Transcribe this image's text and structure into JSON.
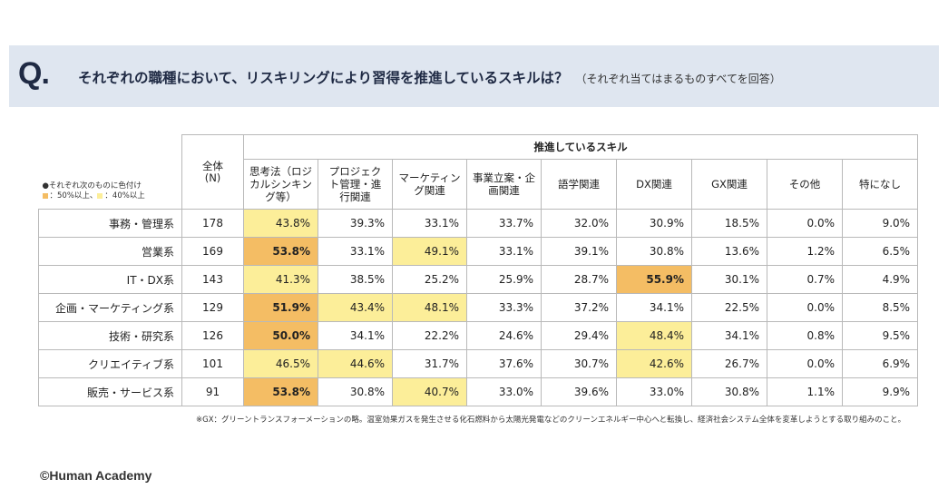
{
  "header": {
    "q_mark": "Q.",
    "question": "それぞれの職種において、リスキリングにより習得を推進しているスキルは？",
    "note": "（それぞれ当てはまるものすべてを回答）"
  },
  "legend": {
    "line1": "●それぞれ次のものに色付け",
    "label50": "：50%以上、",
    "label40": "：40%以上",
    "color_high": "#f4bd64",
    "color_mid": "#fcee99"
  },
  "table": {
    "n_header": "全体\n(N)",
    "group_header": "推進しているスキル",
    "columns": [
      "思考法（ロジカルシンキング等）",
      "プロジェクト管理・進行関連",
      "マーケティング関連",
      "事業立案・企画関連",
      "語学関連",
      "DX関連",
      "GX関連",
      "その他",
      "特になし"
    ],
    "rows": [
      {
        "label": "事務・管理系",
        "n": "178",
        "values": [
          "43.8%",
          "39.3%",
          "33.1%",
          "33.7%",
          "32.0%",
          "30.9%",
          "18.5%",
          "0.0%",
          "9.0%"
        ],
        "hl": [
          "mid",
          "",
          "",
          "",
          "",
          "",
          "",
          "",
          ""
        ]
      },
      {
        "label": "営業系",
        "n": "169",
        "values": [
          "53.8%",
          "33.1%",
          "49.1%",
          "33.1%",
          "39.1%",
          "30.8%",
          "13.6%",
          "1.2%",
          "6.5%"
        ],
        "hl": [
          "hi",
          "",
          "mid",
          "",
          "",
          "",
          "",
          "",
          ""
        ]
      },
      {
        "label": "IT・DX系",
        "n": "143",
        "values": [
          "41.3%",
          "38.5%",
          "25.2%",
          "25.9%",
          "28.7%",
          "55.9%",
          "30.1%",
          "0.7%",
          "4.9%"
        ],
        "hl": [
          "mid",
          "",
          "",
          "",
          "",
          "hi",
          "",
          "",
          ""
        ]
      },
      {
        "label": "企画・マーケティング系",
        "n": "129",
        "values": [
          "51.9%",
          "43.4%",
          "48.1%",
          "33.3%",
          "37.2%",
          "34.1%",
          "22.5%",
          "0.0%",
          "8.5%"
        ],
        "hl": [
          "hi",
          "mid",
          "mid",
          "",
          "",
          "",
          "",
          "",
          ""
        ]
      },
      {
        "label": "技術・研究系",
        "n": "126",
        "values": [
          "50.0%",
          "34.1%",
          "22.2%",
          "24.6%",
          "29.4%",
          "48.4%",
          "34.1%",
          "0.8%",
          "9.5%"
        ],
        "hl": [
          "hi",
          "",
          "",
          "",
          "",
          "mid",
          "",
          "",
          ""
        ]
      },
      {
        "label": "クリエイティブ系",
        "n": "101",
        "values": [
          "46.5%",
          "44.6%",
          "31.7%",
          "37.6%",
          "30.7%",
          "42.6%",
          "26.7%",
          "0.0%",
          "6.9%"
        ],
        "hl": [
          "mid",
          "mid",
          "",
          "",
          "",
          "mid",
          "",
          "",
          ""
        ]
      },
      {
        "label": "販売・サービス系",
        "n": "91",
        "values": [
          "53.8%",
          "30.8%",
          "40.7%",
          "33.0%",
          "39.6%",
          "33.0%",
          "30.8%",
          "1.1%",
          "9.9%"
        ],
        "hl": [
          "hi",
          "",
          "mid",
          "",
          "",
          "",
          "",
          "",
          ""
        ]
      }
    ]
  },
  "footnote": "※GX：グリーントランスフォーメーションの略。温室効果ガスを発生させる化石燃料から太陽光発電などのクリーンエネルギー中心へと転換し、経済社会システム全体を変革しようとする取り組みのこと。",
  "copyright": "©Human Academy"
}
